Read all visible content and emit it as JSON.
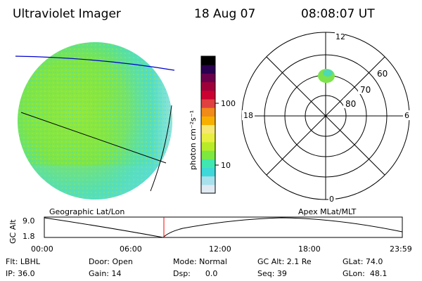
{
  "header": {
    "title": "Ultraviolet Imager",
    "date": "18 Aug 07",
    "time": "08:08:07 UT"
  },
  "colorbar": {
    "label": "photon cm⁻²s⁻¹",
    "ticks": [
      "100",
      "10"
    ],
    "colors": [
      "#e0eaf2",
      "#a8e0ec",
      "#3fd8d8",
      "#40e8b0",
      "#7de840",
      "#b8ec28",
      "#e8ef40",
      "#f6e870",
      "#f7b000",
      "#f08a18",
      "#e04040",
      "#cc0030",
      "#a0003a",
      "#6a004c",
      "#2a0050",
      "#000000"
    ]
  },
  "polar": {
    "mlt_labels": {
      "top": "12",
      "right": "6",
      "bottom": "0",
      "left": "18"
    },
    "lat_labels": [
      "60",
      "70",
      "80"
    ]
  },
  "timeline": {
    "left_title": "Geographic Lat/Lon",
    "right_title": "Apex MLat/MLT",
    "y_axis_label": "GC Alt",
    "y_ticks": [
      "9.0",
      "1.8"
    ],
    "x_ticks": [
      "00:00",
      "06:00",
      "12:00",
      "18:00",
      "23:59"
    ],
    "current_marker_time": "08:08",
    "colors": {
      "marker": "#ff0000",
      "curve": "#000000"
    }
  },
  "footer": {
    "flt": "Flt: LBHL",
    "door": "Door: Open",
    "mode": "Mode: Normal",
    "gc_alt": "GC Alt: 2.1 Re",
    "glat": "GLat: 74.0",
    "ip": "IP: 36.0",
    "gain": "Gain: 14",
    "dsp": "Dsp:      0.0",
    "seq": "Seq: 39",
    "glon": "GLon:  48.1"
  }
}
